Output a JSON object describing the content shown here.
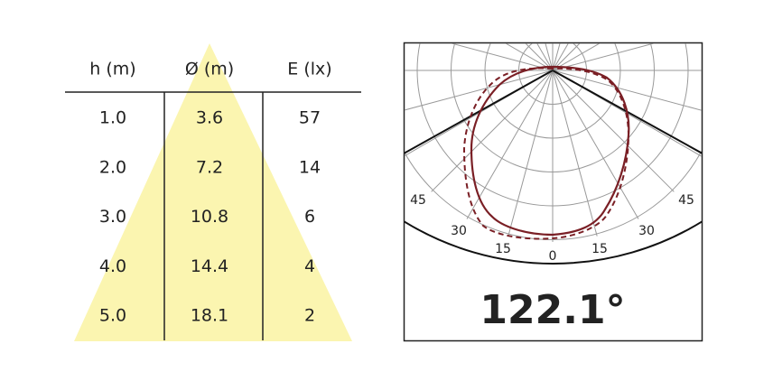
{
  "table": {
    "header": [
      "h (m)",
      "Ø (m)",
      "E (lx)"
    ],
    "rows": [
      [
        "1.0",
        "3.6",
        "57"
      ],
      [
        "2.0",
        "7.2",
        "14"
      ],
      [
        "3.0",
        "10.8",
        "6"
      ],
      [
        "4.0",
        "14.4",
        "4"
      ],
      [
        "5.0",
        "18.1",
        "2"
      ]
    ]
  },
  "polar": {
    "angle_labels": [
      "45",
      "30",
      "15",
      "0",
      "15",
      "30",
      "45"
    ],
    "beam_angle": "122.1°"
  }
}
